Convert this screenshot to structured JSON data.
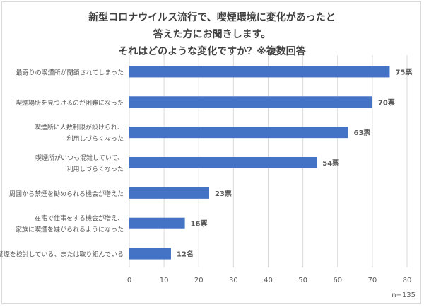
{
  "chart_data": {
    "type": "bar",
    "orientation": "horizontal",
    "title": [
      "新型コロナウイルス流行で、喫煙環境に変化があったと",
      "答えた方にお聞きします。",
      "それはどのような変化ですか？※複数回答"
    ],
    "categories": [
      [
        "最寄りの喫煙所が閉鎖されてしまった"
      ],
      [
        "喫煙場所を見つけるのが困難になった"
      ],
      [
        "喫煙所に人数制限が設けられ、",
        "利用しづらくなった"
      ],
      [
        "喫煙所がいつも混雑していて、",
        "利用しづらくなった"
      ],
      [
        "周囲から禁煙を勧められる機会が増えた"
      ],
      [
        "在宅で仕事をする機会が増え、",
        "家族に喫煙を嫌がられるようになった"
      ],
      [
        "禁煙を検討している、または取り組んでいる"
      ]
    ],
    "values": [
      75,
      70,
      63,
      54,
      23,
      16,
      12
    ],
    "data_labels": [
      "75票",
      "70票",
      "63票",
      "54票",
      "23票",
      "16票",
      "12名"
    ],
    "xlim": [
      0,
      80
    ],
    "xticks": [
      0,
      10,
      20,
      30,
      40,
      50,
      60,
      70,
      80
    ],
    "grid": true,
    "bar_color": "#4472c4",
    "note": "n=135"
  }
}
